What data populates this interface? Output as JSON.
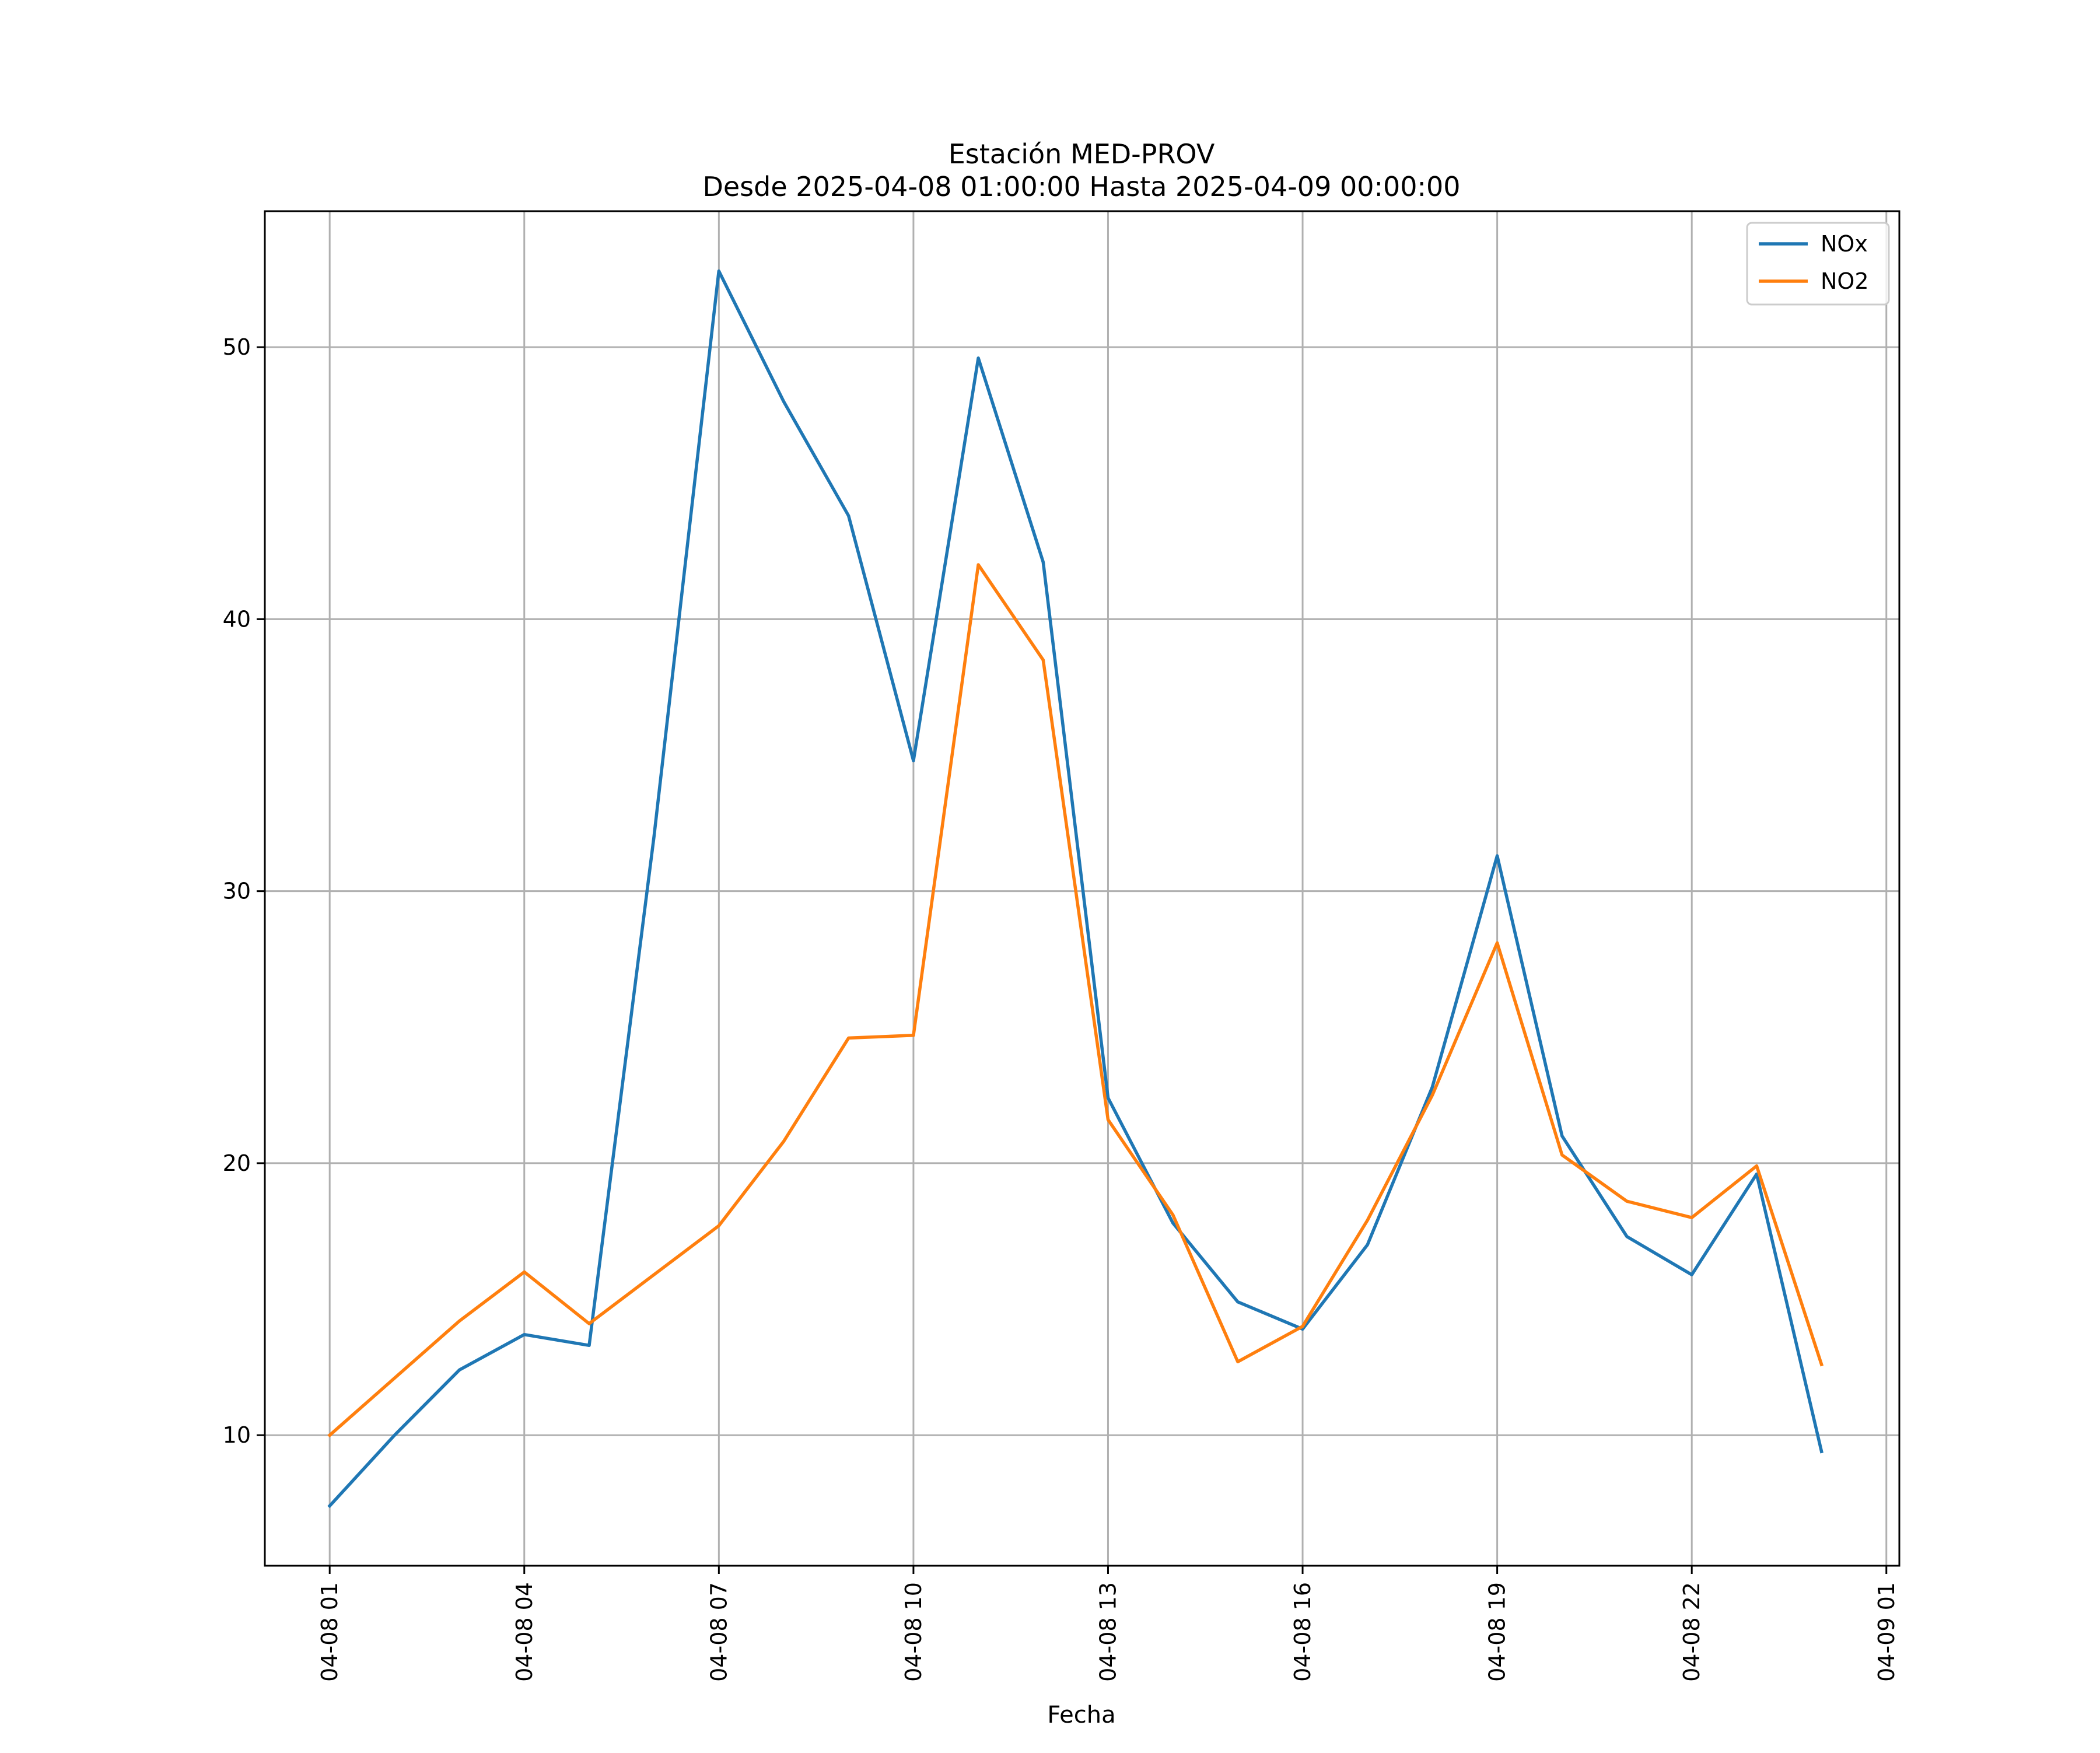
{
  "chart_data": {
    "type": "line",
    "title": "Estación MED-PROV",
    "subtitle": "Desde 2025-04-08 01:00:00 Hasta 2025-04-09 00:00:00",
    "xlabel": "Fecha",
    "ylabel": "",
    "x": [
      "2025-04-08 01:00",
      "2025-04-08 02:00",
      "2025-04-08 03:00",
      "2025-04-08 04:00",
      "2025-04-08 05:00",
      "2025-04-08 06:00",
      "2025-04-08 07:00",
      "2025-04-08 08:00",
      "2025-04-08 09:00",
      "2025-04-08 10:00",
      "2025-04-08 11:00",
      "2025-04-08 12:00",
      "2025-04-08 13:00",
      "2025-04-08 14:00",
      "2025-04-08 15:00",
      "2025-04-08 16:00",
      "2025-04-08 17:00",
      "2025-04-08 18:00",
      "2025-04-08 19:00",
      "2025-04-08 20:00",
      "2025-04-08 21:00",
      "2025-04-08 22:00",
      "2025-04-08 23:00",
      "2025-04-09 00:00"
    ],
    "series": [
      {
        "name": "NOx",
        "color": "#1f77b4",
        "values": [
          7.4,
          10.0,
          12.4,
          13.7,
          13.3,
          32.0,
          52.8,
          48.0,
          43.8,
          34.8,
          49.6,
          42.1,
          22.4,
          17.8,
          14.9,
          13.9,
          17.0,
          22.8,
          31.3,
          21.0,
          17.3,
          15.9,
          19.6,
          9.4
        ]
      },
      {
        "name": "NO2",
        "color": "#ff7f0e",
        "values": [
          10.0,
          12.1,
          14.2,
          16.0,
          14.1,
          15.9,
          17.7,
          20.8,
          24.6,
          24.7,
          42.0,
          38.5,
          21.6,
          18.1,
          12.7,
          14.0,
          17.9,
          22.5,
          28.1,
          20.3,
          18.6,
          18.0,
          19.9,
          12.6
        ]
      }
    ],
    "xlim": [
      "2025-04-08 00:00",
      "2025-04-09 01:12"
    ],
    "xticks": [
      "2025-04-08 01:00",
      "2025-04-08 04:00",
      "2025-04-08 07:00",
      "2025-04-08 10:00",
      "2025-04-08 13:00",
      "2025-04-08 16:00",
      "2025-04-08 19:00",
      "2025-04-08 22:00",
      "2025-04-09 01:00"
    ],
    "xtick_labels": [
      "04-08 01",
      "04-08 04",
      "04-08 07",
      "04-08 10",
      "04-08 13",
      "04-08 16",
      "04-08 19",
      "04-08 22",
      "04-09 01"
    ],
    "yticks": [
      10,
      20,
      30,
      40,
      50
    ],
    "ylim": [
      5.2,
      55.0
    ],
    "grid": true,
    "legend_position": "top-right"
  }
}
